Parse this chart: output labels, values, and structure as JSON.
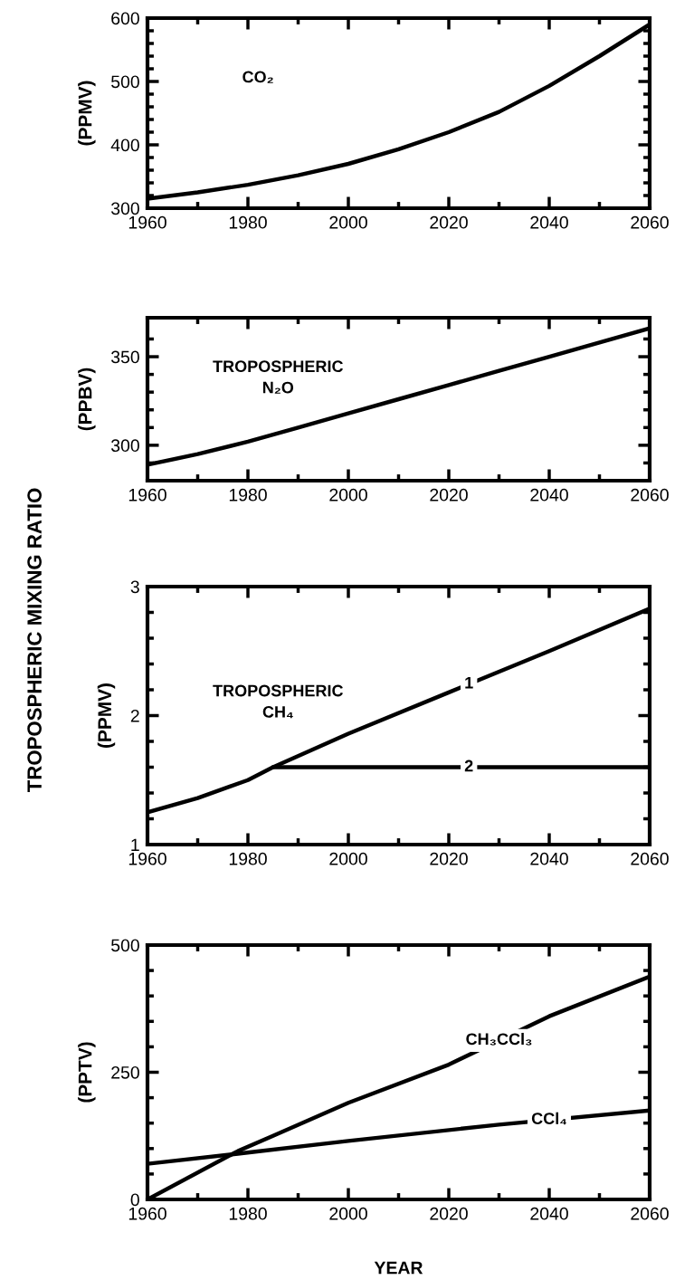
{
  "chart_data": [
    {
      "type": "line",
      "ylabel": "(PPMV)",
      "annotations": [
        "TROPOSPHERIC MIXING RATIO"
      ],
      "x": [
        1960,
        1970,
        1980,
        1990,
        2000,
        2010,
        2020,
        2030,
        2040,
        2050,
        2060
      ],
      "series": [
        {
          "name": "CO₂",
          "color": "#000000",
          "values": [
            315,
            325,
            337,
            352,
            370,
            393,
            420,
            452,
            493,
            540,
            590
          ]
        }
      ],
      "xlim": [
        1960,
        2060
      ],
      "xticks": [
        1960,
        {
          "value": 1970,
          "label": null
        },
        1980,
        {
          "value": 1990,
          "label": null
        },
        2000,
        {
          "value": 2010,
          "label": null
        },
        2020,
        {
          "value": 2030,
          "label": null
        },
        2040,
        {
          "value": 2050,
          "label": null
        },
        2060
      ],
      "ylim": [
        300,
        600
      ],
      "yticks": [
        300,
        {
          "value": 320,
          "label": null
        },
        {
          "value": 340,
          "label": null
        },
        {
          "value": 360,
          "label": null
        },
        {
          "value": 380,
          "label": null
        },
        400,
        {
          "value": 420,
          "label": null
        },
        {
          "value": 440,
          "label": null
        },
        {
          "value": 460,
          "label": null
        },
        {
          "value": 480,
          "label": null
        },
        500,
        {
          "value": 520,
          "label": null
        },
        {
          "value": 540,
          "label": null
        },
        {
          "value": 560,
          "label": null
        },
        {
          "value": 580,
          "label": null
        },
        600
      ],
      "grid": false,
      "legend": false,
      "line_style": "solid",
      "marker": "none"
    },
    {
      "type": "line",
      "ylabel": "(PPBV)",
      "x": [
        1960,
        1970,
        1980,
        1990,
        2000,
        2010,
        2020,
        2030,
        2040,
        2050,
        2060
      ],
      "series": [
        {
          "name": "TROPOSPHERIC\nN₂O",
          "color": "#000000",
          "values": [
            289,
            295,
            302,
            310,
            318,
            326,
            334,
            342,
            350,
            358,
            366
          ]
        }
      ],
      "xlim": [
        1960,
        2060
      ],
      "xticks": [
        1960,
        {
          "value": 1970,
          "label": null
        },
        1980,
        {
          "value": 1990,
          "label": null
        },
        2000,
        {
          "value": 2010,
          "label": null
        },
        2020,
        {
          "value": 2030,
          "label": null
        },
        2040,
        {
          "value": 2050,
          "label": null
        },
        2060
      ],
      "ylim": [
        280,
        372
      ],
      "yticks": [
        {
          "value": 290,
          "label": null
        },
        300,
        {
          "value": 310,
          "label": null
        },
        {
          "value": 320,
          "label": null
        },
        {
          "value": 330,
          "label": null
        },
        {
          "value": 340,
          "label": null
        },
        350,
        {
          "value": 360,
          "label": null
        }
      ],
      "grid": false,
      "legend": false,
      "line_style": "solid",
      "marker": "none"
    },
    {
      "type": "line",
      "ylabel": "(PPMV)",
      "annotations": [
        "TROPOSPHERIC\nCH₄"
      ],
      "series": [
        {
          "name": "1",
          "color": "#000000",
          "x": [
            1960,
            1970,
            1980,
            1985,
            2000,
            2020,
            2040,
            2060
          ],
          "values": [
            1.25,
            1.36,
            1.5,
            1.6,
            1.86,
            2.18,
            2.5,
            2.83
          ]
        },
        {
          "name": "2",
          "color": "#000000",
          "x": [
            1985,
            2060
          ],
          "values": [
            1.6,
            1.6
          ]
        }
      ],
      "xlim": [
        1960,
        2060
      ],
      "xticks": [
        1960,
        {
          "value": 1970,
          "label": null
        },
        1980,
        {
          "value": 1990,
          "label": null
        },
        2000,
        {
          "value": 2010,
          "label": null
        },
        2020,
        {
          "value": 2030,
          "label": null
        },
        2040,
        {
          "value": 2050,
          "label": null
        },
        2060
      ],
      "ylim": [
        1,
        3
      ],
      "yticks": [
        1,
        {
          "value": 1.2,
          "label": null
        },
        {
          "value": 1.4,
          "label": null
        },
        {
          "value": 1.6,
          "label": null
        },
        {
          "value": 1.8,
          "label": null
        },
        2,
        {
          "value": 2.2,
          "label": null
        },
        {
          "value": 2.4,
          "label": null
        },
        {
          "value": 2.6,
          "label": null
        },
        {
          "value": 2.8,
          "label": null
        },
        3
      ],
      "grid": false,
      "legend": false,
      "line_style": "solid",
      "marker": "none"
    },
    {
      "type": "line",
      "ylabel": "(PPTV)",
      "xlabel": "YEAR",
      "series": [
        {
          "name": "CH₃CCl₃",
          "color": "#000000",
          "x": [
            1960,
            1978,
            1985,
            2000,
            2020,
            2040,
            2060
          ],
          "values": [
            0,
            95,
            125,
            190,
            265,
            360,
            438
          ]
        },
        {
          "name": "CCl₄",
          "color": "#000000",
          "x": [
            1960,
            1978,
            2000,
            2030,
            2060
          ],
          "values": [
            70,
            90,
            115,
            147,
            175
          ]
        }
      ],
      "xlim": [
        1960,
        2060
      ],
      "xticks": [
        1960,
        {
          "value": 1970,
          "label": null
        },
        1980,
        {
          "value": 1990,
          "label": null
        },
        2000,
        {
          "value": 2010,
          "label": null
        },
        2020,
        {
          "value": 2030,
          "label": null
        },
        2040,
        {
          "value": 2050,
          "label": null
        },
        2060
      ],
      "ylim": [
        0,
        500
      ],
      "yticks": [
        0,
        {
          "value": 50,
          "label": null
        },
        {
          "value": 100,
          "label": null
        },
        {
          "value": 150,
          "label": null
        },
        {
          "value": 200,
          "label": null
        },
        250,
        {
          "value": 300,
          "label": null
        },
        {
          "value": 350,
          "label": null
        },
        {
          "value": 400,
          "label": null
        },
        {
          "value": 450,
          "label": null
        },
        500
      ],
      "grid": false,
      "legend": false,
      "line_style": "solid",
      "marker": "none"
    }
  ]
}
